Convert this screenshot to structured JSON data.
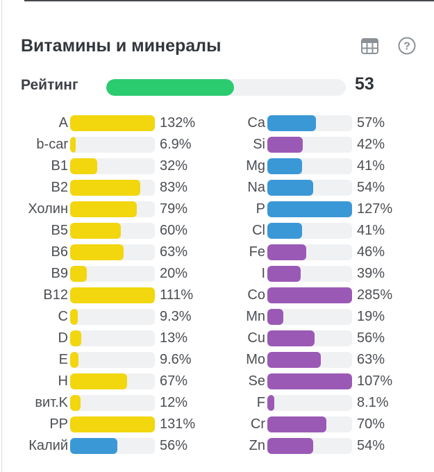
{
  "header": {
    "title": "Витамины и минералы",
    "icons": {
      "table": "table-icon",
      "help_glyph": "?"
    }
  },
  "rating": {
    "label": "Рейтинг",
    "value": "53",
    "percent": 53.3
  },
  "palette": {
    "yellow": "#f2d60e",
    "blue": "#3b98d6",
    "purple": "#9b59b6",
    "green": "#2bcb70",
    "track": "#f0f1f3",
    "icon_gray": "#8b9197"
  },
  "chart_data": [
    {
      "type": "bar",
      "orientation": "horizontal",
      "group": "vitamins",
      "bar_scale_max": 100,
      "categories": [
        "A",
        "b-car",
        "B1",
        "B2",
        "Холин",
        "B5",
        "B6",
        "B9",
        "B12",
        "C",
        "D",
        "E",
        "H",
        "вит.K",
        "PP",
        "Калий"
      ],
      "values": [
        132,
        6.9,
        32,
        83,
        79,
        60,
        63,
        20,
        111,
        9.3,
        13,
        9.6,
        67,
        12,
        131,
        56
      ],
      "labels": [
        "132%",
        "6.9%",
        "32%",
        "83%",
        "79%",
        "60%",
        "63%",
        "20%",
        "111%",
        "9.3%",
        "13%",
        "9.6%",
        "67%",
        "12%",
        "131%",
        "56%"
      ],
      "colors": [
        "yellow",
        "yellow",
        "yellow",
        "yellow",
        "yellow",
        "yellow",
        "yellow",
        "yellow",
        "yellow",
        "yellow",
        "yellow",
        "yellow",
        "yellow",
        "yellow",
        "yellow",
        "blue"
      ]
    },
    {
      "type": "bar",
      "orientation": "horizontal",
      "group": "minerals",
      "bar_scale_max": 100,
      "categories": [
        "Ca",
        "Si",
        "Mg",
        "Na",
        "P",
        "Cl",
        "Fe",
        "I",
        "Co",
        "Mn",
        "Cu",
        "Mo",
        "Se",
        "F",
        "Cr",
        "Zn"
      ],
      "values": [
        57,
        42,
        41,
        54,
        127,
        41,
        46,
        39,
        285,
        19,
        56,
        63,
        107,
        8.1,
        70,
        54
      ],
      "labels": [
        "57%",
        "42%",
        "41%",
        "54%",
        "127%",
        "41%",
        "46%",
        "39%",
        "285%",
        "19%",
        "56%",
        "63%",
        "107%",
        "8.1%",
        "70%",
        "54%"
      ],
      "colors": [
        "blue",
        "purple",
        "blue",
        "blue",
        "blue",
        "blue",
        "purple",
        "purple",
        "purple",
        "purple",
        "purple",
        "purple",
        "purple",
        "purple",
        "purple",
        "purple"
      ]
    }
  ]
}
